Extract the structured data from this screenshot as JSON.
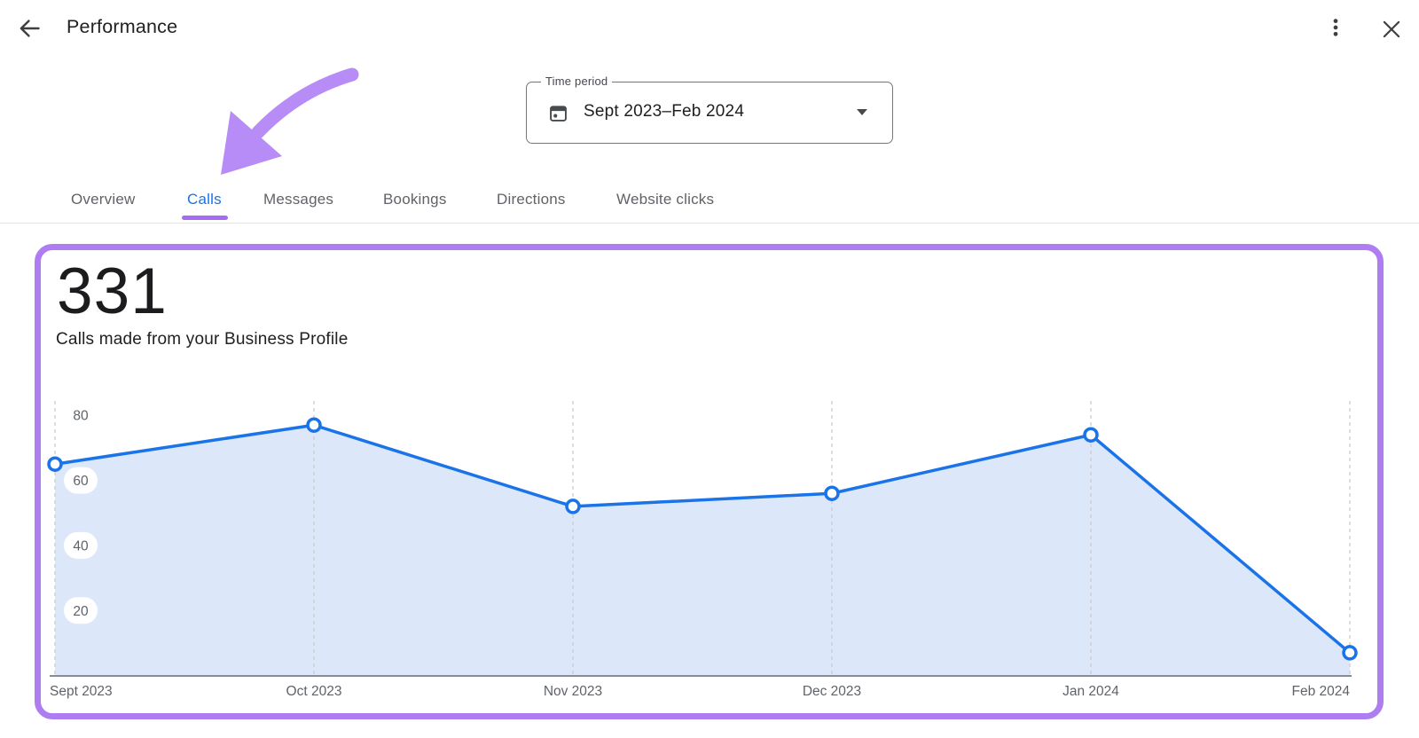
{
  "header": {
    "title": "Performance",
    "back_icon": "back-arrow",
    "more_icon": "kebab-menu",
    "close_icon": "close-x"
  },
  "time_period": {
    "label": "Time period",
    "value": "Sept 2023–Feb 2024"
  },
  "tabs": [
    {
      "label": "Overview",
      "active": false
    },
    {
      "label": "Calls",
      "active": true
    },
    {
      "label": "Messages",
      "active": false
    },
    {
      "label": "Bookings",
      "active": false
    },
    {
      "label": "Directions",
      "active": false
    },
    {
      "label": "Website clicks",
      "active": false
    }
  ],
  "metric": {
    "value": "331",
    "description": "Calls made from your Business Profile"
  },
  "chart_data": {
    "type": "area",
    "title": "Calls made from your Business Profile",
    "categories": [
      "Sept 2023",
      "Oct 2023",
      "Nov 2023",
      "Dec 2023",
      "Jan 2024",
      "Feb 2024"
    ],
    "values": [
      65,
      77,
      52,
      56,
      74,
      7
    ],
    "total": 331,
    "y_ticks": [
      20,
      40,
      60,
      80
    ],
    "ylim": [
      0,
      85
    ],
    "grid": "vertical-dashed",
    "legend": "none",
    "line_color": "#1a73e8",
    "fill_color": "#dce8f9",
    "point_fill": "#ffffff",
    "grid_color": "#cdcdcd",
    "axis_color": "#878c94",
    "tick_label_color": "#5f6368"
  },
  "annotation": {
    "type": "arrow",
    "color": "#b78cf7",
    "points_to": "Calls tab"
  },
  "colors": {
    "accent_blue": "#1a73e8",
    "highlight_purple": "#ae7df2",
    "underline_purple": "#a56cf2",
    "text_primary": "#202124",
    "text_secondary": "#5f6368"
  }
}
